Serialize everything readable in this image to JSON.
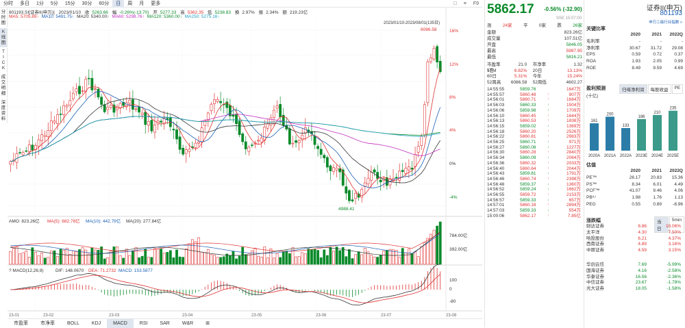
{
  "toolbar": {
    "items": [
      "分时",
      "多日",
      "1分",
      "5分",
      "15分",
      "30分",
      "60分",
      "日",
      "周",
      "月",
      "更多"
    ],
    "active_index": 7,
    "right_items": [
      "□",
      "≡",
      "F9"
    ]
  },
  "side_tabs": [
    "分时图",
    "K线图",
    "TICK",
    "成交明细",
    "深度资料"
  ],
  "info_line1": {
    "name": "801193.SI[证券II(申万)]",
    "date": "2023/01/10",
    "close_label": "收",
    "close": "5263.66",
    "range_label": "幅",
    "range": "-0.26%(-13.70)",
    "open_label": "开",
    "open": "5277.33",
    "high_label": "高",
    "high": "5362.35",
    "low_label": "低",
    "low": "5238.83",
    "turn_label": "换",
    "turn": "2.97%",
    "amp_label": "振",
    "amp": "2.34%",
    "amount_label": "额",
    "amount": "219.23亿"
  },
  "info_line2": {
    "ma": [
      {
        "label": "MA5",
        "value": "5705.89↑",
        "color": "#e03030"
      },
      {
        "label": "MA10",
        "value": "5491.75↑",
        "color": "#1a5fb4"
      },
      {
        "label": "MA20",
        "value": "5340.00↑",
        "color": "#333333"
      },
      {
        "label": "MA60",
        "value": "5298.76↑",
        "color": "#c030c0"
      },
      {
        "label": "MA120",
        "value": "5360.00↑",
        "color": "#0a8a2a"
      },
      {
        "label": "MA250",
        "value": "5275.16↑",
        "color": "#20a0c0"
      }
    ],
    "date_range": "2023/01/10-2023/08/01(135日)"
  },
  "kline": {
    "y_labels": [
      "16%",
      "12%",
      "8%",
      "4%",
      "0%",
      "-4%"
    ],
    "max_label": "6086.58",
    "min_label": "4988.41"
  },
  "amo": {
    "label": "AMO: 823.26亿",
    "ma5": "MA(5): 682.78亿",
    "ma10": "MA(10): 442.79亿",
    "ma20": "MA(20): 277.84亿",
    "y_labels": [
      "784.00亿",
      "392.00亿"
    ]
  },
  "macd": {
    "label": "MACD(12,26,9)",
    "dif": "DIF: 148.0670",
    "dea": "DEA: 71.2732",
    "macd": "MACD: 153.5877",
    "y_labels": [
      "100",
      "0",
      "-80"
    ]
  },
  "x_labels": [
    "23-01",
    "23-02",
    "23-03",
    "23-04",
    "23-05",
    "23-06",
    "23-07",
    "23-08"
  ],
  "bottom_tabs": [
    "市盈率",
    "市净率",
    "BOLL",
    "KDJ",
    "MACD",
    "RSI",
    "SAR",
    "W&R",
    "⊞"
  ],
  "bottom_active": 4,
  "quote": {
    "price": "5862.17",
    "change": "-0.56%",
    "change_abs": "(-32.90)",
    "time": "SSE 15:07:00",
    "ud": {
      "up_label": "涨",
      "up": "24家",
      "flat_label": "平",
      "flat": "0家",
      "down_label": "跌",
      "down": "26家"
    },
    "fields": [
      {
        "k": "金额",
        "v": "823.26亿",
        "c": "#333333"
      },
      {
        "k": "成交量",
        "v": "107.51亿",
        "c": "#333333"
      },
      {
        "k": "开盘",
        "v": "5846.05",
        "c": "#0a8a2a"
      },
      {
        "k": "最高",
        "v": "5987.95",
        "c": "#e03030"
      },
      {
        "k": "最低",
        "v": "5816.21",
        "c": "#0a8a2a"
      }
    ],
    "stats": [
      {
        "k1": "市盈率TTM",
        "v1": "21.0",
        "k2": "市净率",
        "v2": "1.32",
        "c": "#333333"
      },
      {
        "k1": "5日",
        "v1": "6.82%",
        "k2": "20日",
        "v2": "13.13%",
        "c": "#e03030"
      },
      {
        "k1": "60日",
        "v1": "5.31%",
        "k2": "今年",
        "v2": "15.24%",
        "c": "#e03030"
      },
      {
        "k1": "52周高",
        "v1": "6086.58",
        "k2": "52周低",
        "v2": "4602.27",
        "c": "#333333"
      }
    ],
    "ticks": [
      {
        "t": "14:55:55",
        "p": "5859.76",
        "a": "",
        "v": "1647万"
      },
      {
        "t": "14:55:57",
        "p": "5860.48",
        "a": "↑",
        "v": "807万"
      },
      {
        "t": "14:56:01",
        "p": "5860.71",
        "a": "↑",
        "v": "1684万"
      },
      {
        "t": "14:56:03",
        "p": "5860.33",
        "a": "↓",
        "v": "1504万"
      },
      {
        "t": "14:56:06",
        "p": "5859.98",
        "a": "↓",
        "v": "1709万"
      },
      {
        "t": "14:56:10",
        "p": "5860.45",
        "a": "↑",
        "v": "1644万"
      },
      {
        "t": "14:56:13",
        "p": "5860.53",
        "a": "↑",
        "v": "1838万"
      },
      {
        "t": "14:56:15",
        "p": "5859.02",
        "a": "↓",
        "v": "1369万"
      },
      {
        "t": "14:56:18",
        "p": "5860.20",
        "a": "↑",
        "v": "2526万"
      },
      {
        "t": "14:56:22",
        "p": "5860.81",
        "a": "↑",
        "v": "2983万"
      },
      {
        "t": "14:56:25",
        "p": "5860.71",
        "a": "↓",
        "v": "971万"
      },
      {
        "t": "14:56:27",
        "p": "5860.08",
        "a": "↓",
        "v": "1227万"
      },
      {
        "t": "14:56:30",
        "p": "5860.28",
        "a": "↑",
        "v": "2840万"
      },
      {
        "t": "14:56:34",
        "p": "5860.09",
        "a": "↓",
        "v": "2064万"
      },
      {
        "t": "14:56:36",
        "p": "5860.32",
        "a": "↑",
        "v": "2033万"
      },
      {
        "t": "14:56:40",
        "p": "5860.64",
        "a": "↑",
        "v": "2044万"
      },
      {
        "t": "14:56:43",
        "p": "5859.81",
        "a": "↓",
        "v": "1791万"
      },
      {
        "t": "14:56:46",
        "p": "5860.74",
        "a": "↑",
        "v": "2398万"
      },
      {
        "t": "14:56:48",
        "p": "5859.37",
        "a": "↓",
        "v": "1360万"
      },
      {
        "t": "14:56:52",
        "p": "5859.24",
        "a": "↓",
        "v": "1662万"
      },
      {
        "t": "14:56:55",
        "p": "5859.72",
        "a": "↑",
        "v": "2153万"
      },
      {
        "t": "14:56:57",
        "p": "5859.33",
        "a": "↓",
        "v": "657万"
      },
      {
        "t": "14:57:01",
        "p": "5860.18",
        "a": "↑",
        "v": "2894万"
      },
      {
        "t": "14:57:03",
        "p": "5859.33",
        "a": "↓",
        "v": "554万"
      },
      {
        "t": "15:00:06",
        "p": "5862.17",
        "a": "↑",
        "v": "7.85亿"
      }
    ]
  },
  "right": {
    "title": "证券II(申万)",
    "code": "801193",
    "sub": "申万二级行业指数 >",
    "key_ratios_title": "关键比率",
    "years": [
      "2020",
      "2021",
      "2022Q"
    ],
    "ratios": [
      {
        "k": "毛利率",
        "v": [
          "-",
          "-",
          "-"
        ]
      },
      {
        "k": "净利率",
        "v": [
          "30.67",
          "31.72",
          "29.08"
        ]
      },
      {
        "k": "EPS",
        "v": [
          "0.59",
          "0.72",
          "0.37"
        ]
      },
      {
        "k": "ROA",
        "v": [
          "1.93",
          "2.05",
          "0.99"
        ]
      },
      {
        "k": "ROE",
        "v": [
          "8.49",
          "9.59",
          "4.69"
        ]
      }
    ],
    "forecast_title": "盈利预测",
    "forecast_tabs": [
      "归母净利润",
      "每股收益",
      "PE"
    ],
    "forecast_sub": "(十亿)",
    "forecast_bars": [
      {
        "label": "2020A",
        "value": "161"
      },
      {
        "label": "2021A",
        "value": "200"
      },
      {
        "label": "2022A",
        "value": "133"
      },
      {
        "label": "2023E",
        "value": "186"
      },
      {
        "label": "2024E",
        "value": "210"
      },
      {
        "label": "2025E",
        "value": "235"
      }
    ],
    "valuation_title": "估值",
    "valuation": [
      {
        "k": "PE™",
        "v": [
          "26.17",
          "20.83",
          "15.36"
        ]
      },
      {
        "k": "PS™",
        "v": [
          "8.34",
          "6.01",
          "4.49"
        ]
      },
      {
        "k": "PCF™",
        "v": [
          "41.07",
          "9.46",
          "4.06"
        ]
      },
      {
        "k": "PB⁽ᴸ⁾",
        "v": [
          "1.98",
          "1.76",
          "1.13"
        ]
      },
      {
        "k": "PEG",
        "v": [
          "0.55",
          "0.89",
          "-8.96"
        ]
      }
    ],
    "movers_title": "涨跌幅",
    "movers_tabs": [
      "当日",
      "5min"
    ],
    "gainers": [
      {
        "n": "财达证券",
        "p": "8.86",
        "c": "10.06%"
      },
      {
        "n": "太平洋",
        "p": "4.30",
        "c": "7.50%"
      },
      {
        "n": "哈投股份",
        "p": "6.21",
        "c": "4.37%"
      },
      {
        "n": "西南证券",
        "p": "4.89",
        "c": "3.16%"
      },
      {
        "n": "中原证券",
        "p": "4.59",
        "c": "3.15%"
      }
    ],
    "losers": [
      {
        "n": "华创云信",
        "p": "7.69",
        "c": "-5.99%"
      },
      {
        "n": "国海证券",
        "p": "4.16",
        "c": "-2.58%"
      },
      {
        "n": "华泰证券",
        "p": "16.56",
        "c": "-2.36%"
      },
      {
        "n": "中信证券",
        "p": "23.67",
        "c": "-1.78%"
      },
      {
        "n": "光大证券",
        "p": "18.05",
        "c": "-1.58%"
      }
    ]
  },
  "colors": {
    "up": "#e03030",
    "down": "#0a8a2a",
    "accent": "#1a5fb4"
  }
}
